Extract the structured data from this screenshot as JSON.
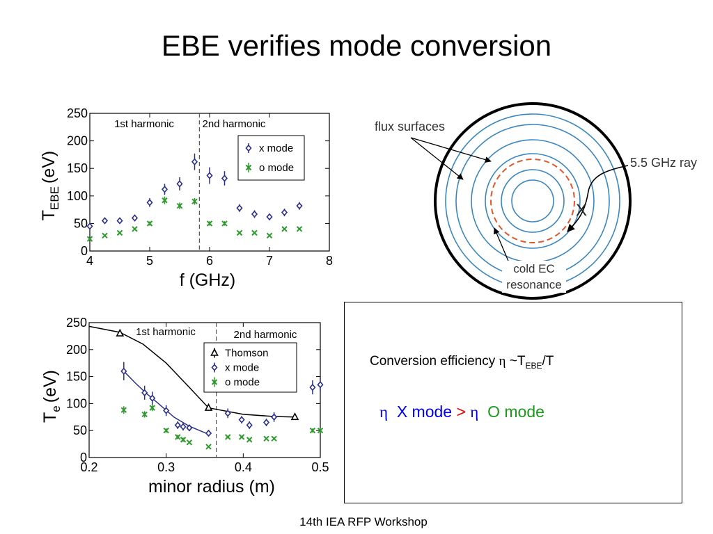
{
  "slide": {
    "title": "EBE verifies mode conversion",
    "footer": "14th IEA RFP Workshop"
  },
  "chart_data": [
    {
      "type": "scatter",
      "xlabel": "f (GHz)",
      "ylabel_main": "T",
      "ylabel_sub": "EBE",
      "ylabel_unit": "(eV)",
      "xlim": [
        4,
        8
      ],
      "ylim": [
        0,
        250
      ],
      "x_ticks": [
        4,
        5,
        6,
        7,
        8
      ],
      "y_ticks": [
        0,
        50,
        100,
        150,
        200,
        250
      ],
      "divider_x": 5.83,
      "region_labels": [
        "1st harmonic",
        "2nd harmonic"
      ],
      "legend_position": "top-right",
      "series": [
        {
          "name": "x mode",
          "color": "#2b2f8c",
          "marker": "diamond",
          "points": [
            [
              4.0,
              45,
              5
            ],
            [
              4.25,
              55,
              5
            ],
            [
              4.5,
              55,
              5
            ],
            [
              4.75,
              60,
              6
            ],
            [
              5.0,
              88,
              8
            ],
            [
              5.25,
              112,
              10
            ],
            [
              5.5,
              122,
              12
            ],
            [
              5.75,
              162,
              15
            ],
            [
              6.0,
              137,
              15
            ],
            [
              6.25,
              132,
              13
            ],
            [
              6.5,
              78,
              7
            ],
            [
              6.75,
              67,
              7
            ],
            [
              7.0,
              62,
              6
            ],
            [
              7.25,
              70,
              7
            ],
            [
              7.5,
              82,
              7
            ]
          ]
        },
        {
          "name": "o mode",
          "color": "#2e9a2e",
          "marker": "cross",
          "points": [
            [
              4.0,
              22,
              3
            ],
            [
              4.25,
              28,
              3
            ],
            [
              4.5,
              33,
              3
            ],
            [
              4.75,
              40,
              3
            ],
            [
              5.0,
              50,
              4
            ],
            [
              5.25,
              92,
              7
            ],
            [
              5.5,
              82,
              6
            ],
            [
              5.75,
              90,
              6
            ],
            [
              6.0,
              50,
              4
            ],
            [
              6.25,
              50,
              4
            ],
            [
              6.5,
              33,
              3
            ],
            [
              6.75,
              33,
              3
            ],
            [
              7.0,
              28,
              3
            ],
            [
              7.25,
              40,
              3
            ],
            [
              7.5,
              40,
              3
            ]
          ]
        }
      ]
    },
    {
      "type": "scatter",
      "xlabel": "minor radius (m)",
      "ylabel_main": "T",
      "ylabel_sub": "e",
      "ylabel_unit": "(eV)",
      "xlim": [
        0.2,
        0.5
      ],
      "ylim": [
        0,
        250
      ],
      "x_ticks": [
        0.2,
        0.3,
        0.4,
        0.5
      ],
      "y_ticks": [
        0,
        50,
        100,
        150,
        200,
        250
      ],
      "divider_x": 0.365,
      "region_labels": [
        "1st harmonic",
        "2nd harmonic"
      ],
      "legend_position": "top-right",
      "series": [
        {
          "name": "Thomson",
          "color": "#000000",
          "marker": "triangle",
          "points": [
            [
              0.24,
              230,
              5
            ],
            [
              0.355,
              92,
              5
            ],
            [
              0.467,
              75,
              5
            ]
          ],
          "curve": [
            [
              0.2,
              243
            ],
            [
              0.24,
              232
            ],
            [
              0.27,
              210
            ],
            [
              0.3,
              175
            ],
            [
              0.33,
              130
            ],
            [
              0.355,
              92
            ],
            [
              0.4,
              80
            ],
            [
              0.44,
              76
            ],
            [
              0.467,
              75
            ]
          ]
        },
        {
          "name": "x mode",
          "color": "#2b2f8c",
          "marker": "diamond",
          "points": [
            [
              0.245,
              160,
              17
            ],
            [
              0.272,
              120,
              13
            ],
            [
              0.282,
              110,
              12
            ],
            [
              0.3,
              87,
              10
            ],
            [
              0.315,
              60,
              7
            ],
            [
              0.322,
              57,
              7
            ],
            [
              0.33,
              55,
              6
            ],
            [
              0.355,
              45,
              6
            ],
            [
              0.38,
              82,
              9
            ],
            [
              0.398,
              70,
              7
            ],
            [
              0.408,
              60,
              7
            ],
            [
              0.43,
              65,
              7
            ],
            [
              0.44,
              75,
              9
            ],
            [
              0.49,
              130,
              13
            ],
            [
              0.5,
              135,
              13
            ]
          ],
          "curve": [
            [
              0.245,
              160
            ],
            [
              0.26,
              138
            ],
            [
              0.275,
              118
            ],
            [
              0.29,
              100
            ],
            [
              0.31,
              75
            ],
            [
              0.33,
              58
            ],
            [
              0.355,
              43
            ]
          ]
        },
        {
          "name": "o mode",
          "color": "#2e9a2e",
          "marker": "cross",
          "points": [
            [
              0.245,
              88,
              7
            ],
            [
              0.272,
              80,
              6
            ],
            [
              0.282,
              92,
              6
            ],
            [
              0.3,
              50,
              4
            ],
            [
              0.315,
              38,
              4
            ],
            [
              0.322,
              33,
              4
            ],
            [
              0.33,
              28,
              3
            ],
            [
              0.355,
              20,
              3
            ],
            [
              0.38,
              38,
              3
            ],
            [
              0.398,
              38,
              3
            ],
            [
              0.408,
              33,
              3
            ],
            [
              0.43,
              35,
              3
            ],
            [
              0.44,
              35,
              3
            ],
            [
              0.49,
              50,
              4
            ],
            [
              0.5,
              50,
              4
            ]
          ]
        }
      ]
    }
  ],
  "diagram": {
    "labels": {
      "flux": "flux surfaces",
      "ray": "5.5 GHz ray",
      "x_marker": "X",
      "resonance_line1": "cold EC",
      "resonance_line2": "resonance"
    },
    "colors": {
      "flux_surface": "#3a86c0",
      "resonance": "#e0572a",
      "wall": "#000000"
    }
  },
  "efficiency": {
    "line1_prefix": "Conversion efficiency ",
    "eta": "η",
    "line1_mid": " ~T",
    "line1_sub": "EBE",
    "line1_suffix": "/T",
    "eta_x": "η",
    "x_mode": "X mode",
    "gt": ">",
    "eta_o": "η",
    "o_mode": "O mode"
  }
}
